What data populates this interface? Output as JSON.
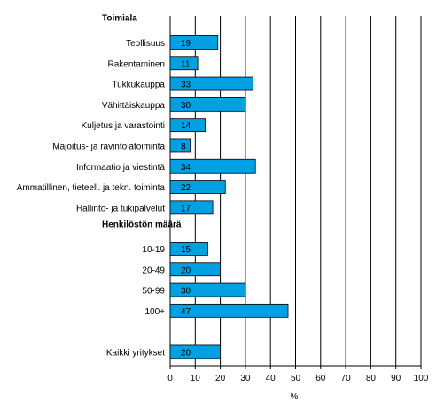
{
  "chart_data": {
    "type": "bar",
    "orientation": "horizontal",
    "xlabel": "%",
    "xlim": [
      0,
      100
    ],
    "x_ticks": [
      "0",
      "10",
      "20",
      "30",
      "40",
      "50",
      "60",
      "70",
      "80",
      "90",
      "100"
    ],
    "grid": "vertical lines at each tick",
    "bar_color": "#00a0e3",
    "groups": [
      {
        "title": "Toimiala",
        "categories": [
          "Teollisuus",
          "Rakentaminen",
          "Tukkukauppa",
          "Vähittäiskauppa",
          "Kuljetus ja varastointi",
          "Majoitus- ja ravintolatoiminta",
          "Informaatio ja viestintä",
          "Ammatillinen, tieteell. ja tekn. toiminta",
          "Hallinto- ja tukipalvelut"
        ],
        "values": [
          19,
          11,
          33,
          30,
          14,
          8,
          34,
          22,
          17
        ]
      },
      {
        "title": "Henkilöstön määrä",
        "categories": [
          "10-19",
          "20-49",
          "50-99",
          "100+"
        ],
        "values": [
          15,
          20,
          30,
          47
        ]
      },
      {
        "title": "",
        "categories": [
          "Kaikki yritykset"
        ],
        "values": [
          20
        ]
      }
    ]
  }
}
